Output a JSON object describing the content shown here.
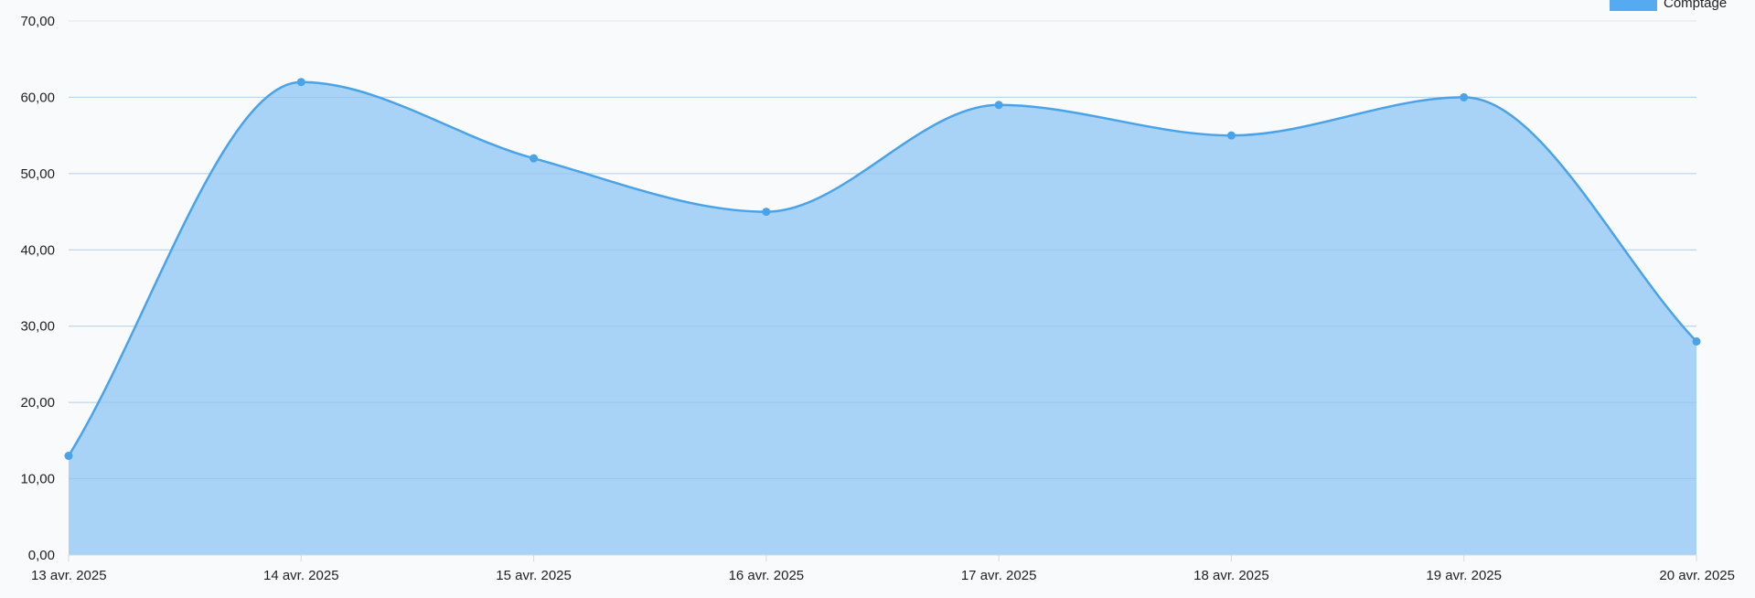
{
  "chart_data": {
    "type": "area",
    "x": [
      "13 avr. 2025",
      "14 avr. 2025",
      "15 avr. 2025",
      "16 avr. 2025",
      "17 avr. 2025",
      "18 avr. 2025",
      "19 avr. 2025",
      "20 avr. 2025"
    ],
    "series": [
      {
        "name": "Comptage",
        "values": [
          13,
          62,
          52,
          45,
          59,
          55,
          60,
          28
        ],
        "line_color": "#4aa3e8",
        "fill_color": "#a8d3f7",
        "point_color": "#4aa3e8",
        "legend_color": "#55aaf2"
      }
    ],
    "ylim": [
      0,
      70
    ],
    "yticks": [
      0,
      10,
      20,
      30,
      40,
      50,
      60,
      70
    ],
    "ytick_labels": [
      "0,00",
      "10,00",
      "20,00",
      "30,00",
      "40,00",
      "50,00",
      "60,00",
      "70,00"
    ],
    "grid": true,
    "grid_color": "#e2e4e8",
    "legend_position": "top-right",
    "title": "",
    "xlabel": "",
    "ylabel": ""
  }
}
